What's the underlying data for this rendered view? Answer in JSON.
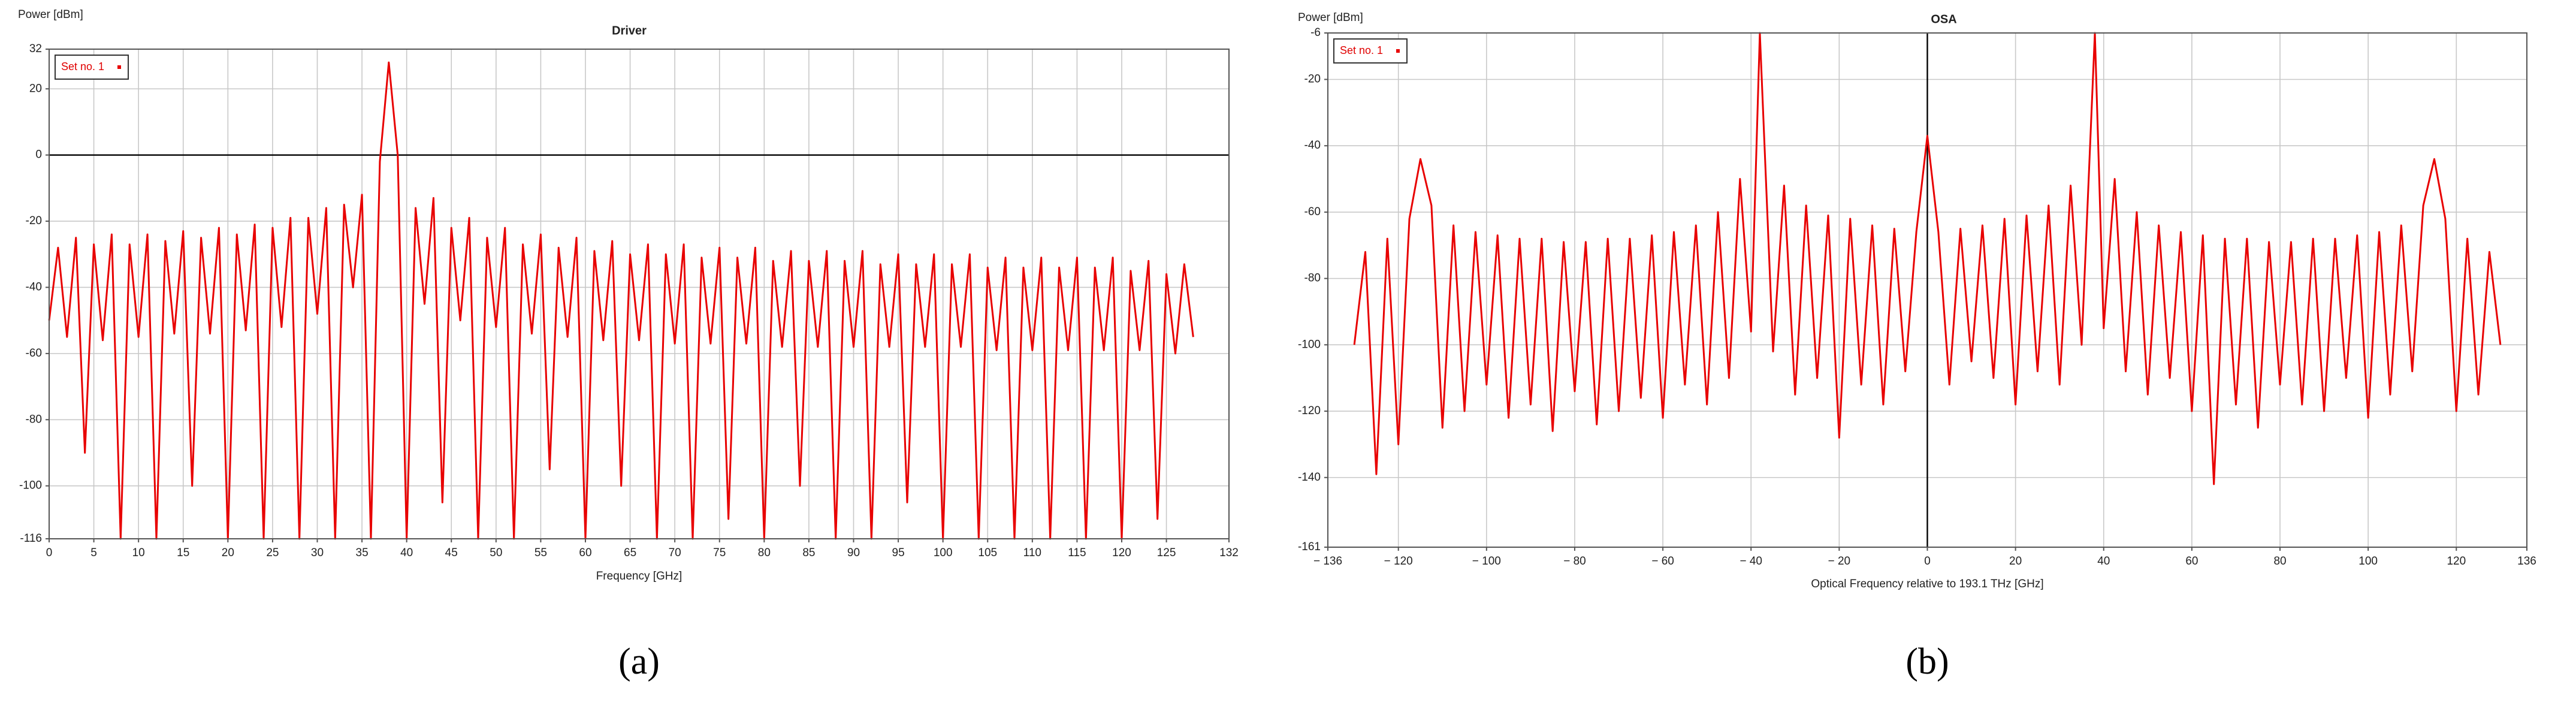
{
  "chart_data": [
    {
      "type": "line",
      "title": "Driver",
      "y_label": "Power [dBm]",
      "x_label": "Frequency [GHz]",
      "caption": "(a)",
      "xlim": [
        0,
        132
      ],
      "xticks": [
        0,
        5,
        10,
        15,
        20,
        25,
        30,
        35,
        40,
        45,
        50,
        55,
        60,
        65,
        70,
        75,
        80,
        85,
        90,
        95,
        100,
        105,
        110,
        115,
        120,
        125,
        132
      ],
      "ylim": [
        -116,
        32
      ],
      "yticks": [
        -116,
        -100,
        -80,
        -60,
        -40,
        -20,
        0,
        20,
        32
      ],
      "grid": true,
      "zero_line": "y",
      "legend": "upper left",
      "x": [
        0,
        1,
        2,
        3,
        4,
        5,
        6,
        7,
        8,
        9,
        10,
        11,
        12,
        13,
        14,
        15,
        16,
        17,
        18,
        19,
        20,
        21,
        22,
        23,
        24,
        25,
        26,
        27,
        28,
        29,
        30,
        31,
        32,
        33,
        34,
        35,
        36,
        37,
        38,
        39,
        40,
        41,
        42,
        43,
        44,
        45,
        46,
        47,
        48,
        49,
        50,
        51,
        52,
        53,
        54,
        55,
        56,
        57,
        58,
        59,
        60,
        61,
        62,
        63,
        64,
        65,
        66,
        67,
        68,
        69,
        70,
        71,
        72,
        73,
        74,
        75,
        76,
        77,
        78,
        79,
        80,
        81,
        82,
        83,
        84,
        85,
        86,
        87,
        88,
        89,
        90,
        91,
        92,
        93,
        94,
        95,
        96,
        97,
        98,
        99,
        100,
        101,
        102,
        103,
        104,
        105,
        106,
        107,
        108,
        109,
        110,
        111,
        112,
        113,
        114,
        115,
        116,
        117,
        118,
        119,
        120,
        121,
        122,
        123,
        124,
        125,
        126,
        127,
        128
      ],
      "series": [
        {
          "name": "Set no. 1",
          "color": "#e80000",
          "values": [
            -50,
            -28,
            -55,
            -25,
            -90,
            -27,
            -56,
            -24,
            -116,
            -27,
            -55,
            -24,
            -116,
            -26,
            -54,
            -23,
            -100,
            -25,
            -54,
            -22,
            -116,
            -24,
            -53,
            -21,
            -116,
            -22,
            -52,
            -19,
            -116,
            -19,
            -48,
            -16,
            -116,
            -15,
            -40,
            -12,
            -116,
            -2,
            28,
            0,
            -116,
            -16,
            -45,
            -13,
            -105,
            -22,
            -50,
            -19,
            -116,
            -25,
            -52,
            -22,
            -116,
            -27,
            -54,
            -24,
            -95,
            -28,
            -55,
            -25,
            -116,
            -29,
            -56,
            -26,
            -100,
            -30,
            -56,
            -27,
            -116,
            -30,
            -57,
            -27,
            -116,
            -31,
            -57,
            -28,
            -110,
            -31,
            -57,
            -28,
            -116,
            -32,
            -58,
            -29,
            -100,
            -32,
            -58,
            -29,
            -116,
            -32,
            -58,
            -29,
            -116,
            -33,
            -58,
            -30,
            -105,
            -33,
            -58,
            -30,
            -116,
            -33,
            -58,
            -30,
            -116,
            -34,
            -59,
            -31,
            -116,
            -34,
            -59,
            -31,
            -116,
            -34,
            -59,
            -31,
            -116,
            -34,
            -59,
            -31,
            -116,
            -35,
            -59,
            -32,
            -110,
            -36,
            -60,
            -33,
            -55
          ]
        }
      ]
    },
    {
      "type": "line",
      "title": "OSA",
      "y_label": "Power [dBm]",
      "x_label": "Optical Frequency relative to 193.1 THz [GHz]",
      "caption": "(b)",
      "xlim": [
        -136,
        136
      ],
      "xticks": [
        {
          "value": -136,
          "label": "− 136"
        },
        {
          "value": -120,
          "label": "− 120"
        },
        {
          "value": -100,
          "label": "− 100"
        },
        {
          "value": -80,
          "label": "− 80"
        },
        {
          "value": -60,
          "label": "− 60"
        },
        {
          "value": -40,
          "label": "− 40"
        },
        {
          "value": -20,
          "label": "− 20"
        },
        0,
        20,
        40,
        60,
        80,
        100,
        120,
        136
      ],
      "ylim": [
        -161,
        -6
      ],
      "yticks": [
        -161,
        -140,
        -120,
        -100,
        -80,
        -60,
        -40,
        -20,
        -6
      ],
      "grid": true,
      "zero_line": "x",
      "legend": "upper left",
      "x": [
        -130,
        -127.5,
        -125,
        -122.5,
        -120,
        -117.5,
        -115,
        -112.5,
        -110,
        -107.5,
        -105,
        -102.5,
        -100,
        -97.5,
        -95,
        -92.5,
        -90,
        -87.5,
        -85,
        -82.5,
        -80,
        -77.5,
        -75,
        -72.5,
        -70,
        -67.5,
        -65,
        -62.5,
        -60,
        -57.5,
        -55,
        -52.5,
        -50,
        -47.5,
        -45,
        -42.5,
        -40,
        -38,
        -35,
        -32.5,
        -30,
        -27.5,
        -25,
        -22.5,
        -20,
        -17.5,
        -15,
        -12.5,
        -10,
        -7.5,
        -5,
        -2.5,
        0,
        2.5,
        5,
        7.5,
        10,
        12.5,
        15,
        17.5,
        20,
        22.5,
        25,
        27.5,
        30,
        32.5,
        35,
        38,
        40,
        42.5,
        45,
        47.5,
        50,
        52.5,
        55,
        57.5,
        60,
        62.5,
        65,
        67.5,
        70,
        72.5,
        75,
        77.5,
        80,
        82.5,
        85,
        87.5,
        90,
        92.5,
        95,
        97.5,
        100,
        102.5,
        105,
        107.5,
        110,
        112.5,
        115,
        117.5,
        120,
        122.5,
        125,
        127.5,
        130
      ],
      "series": [
        {
          "name": "Set no. 1",
          "color": "#e80000",
          "values": [
            -100,
            -72,
            -139,
            -68,
            -130,
            -62,
            -44,
            -58,
            -125,
            -64,
            -120,
            -66,
            -112,
            -67,
            -122,
            -68,
            -118,
            -68,
            -126,
            -69,
            -114,
            -69,
            -124,
            -68,
            -120,
            -68,
            -116,
            -67,
            -122,
            -66,
            -112,
            -64,
            -118,
            -60,
            -110,
            -50,
            -96,
            -6,
            -102,
            -52,
            -115,
            -58,
            -110,
            -61,
            -128,
            -62,
            -112,
            -64,
            -118,
            -65,
            -108,
            -66,
            -37,
            -66,
            -112,
            -65,
            -105,
            -64,
            -110,
            -62,
            -118,
            -61,
            -108,
            -58,
            -112,
            -52,
            -100,
            -6,
            -95,
            -50,
            -108,
            -60,
            -115,
            -64,
            -110,
            -66,
            -120,
            -67,
            -142,
            -68,
            -118,
            -68,
            -125,
            -69,
            -112,
            -69,
            -118,
            -68,
            -120,
            -68,
            -110,
            -67,
            -122,
            -66,
            -115,
            -64,
            -108,
            -58,
            -44,
            -62,
            -120,
            -68,
            -115,
            -72,
            -100
          ]
        }
      ]
    }
  ]
}
